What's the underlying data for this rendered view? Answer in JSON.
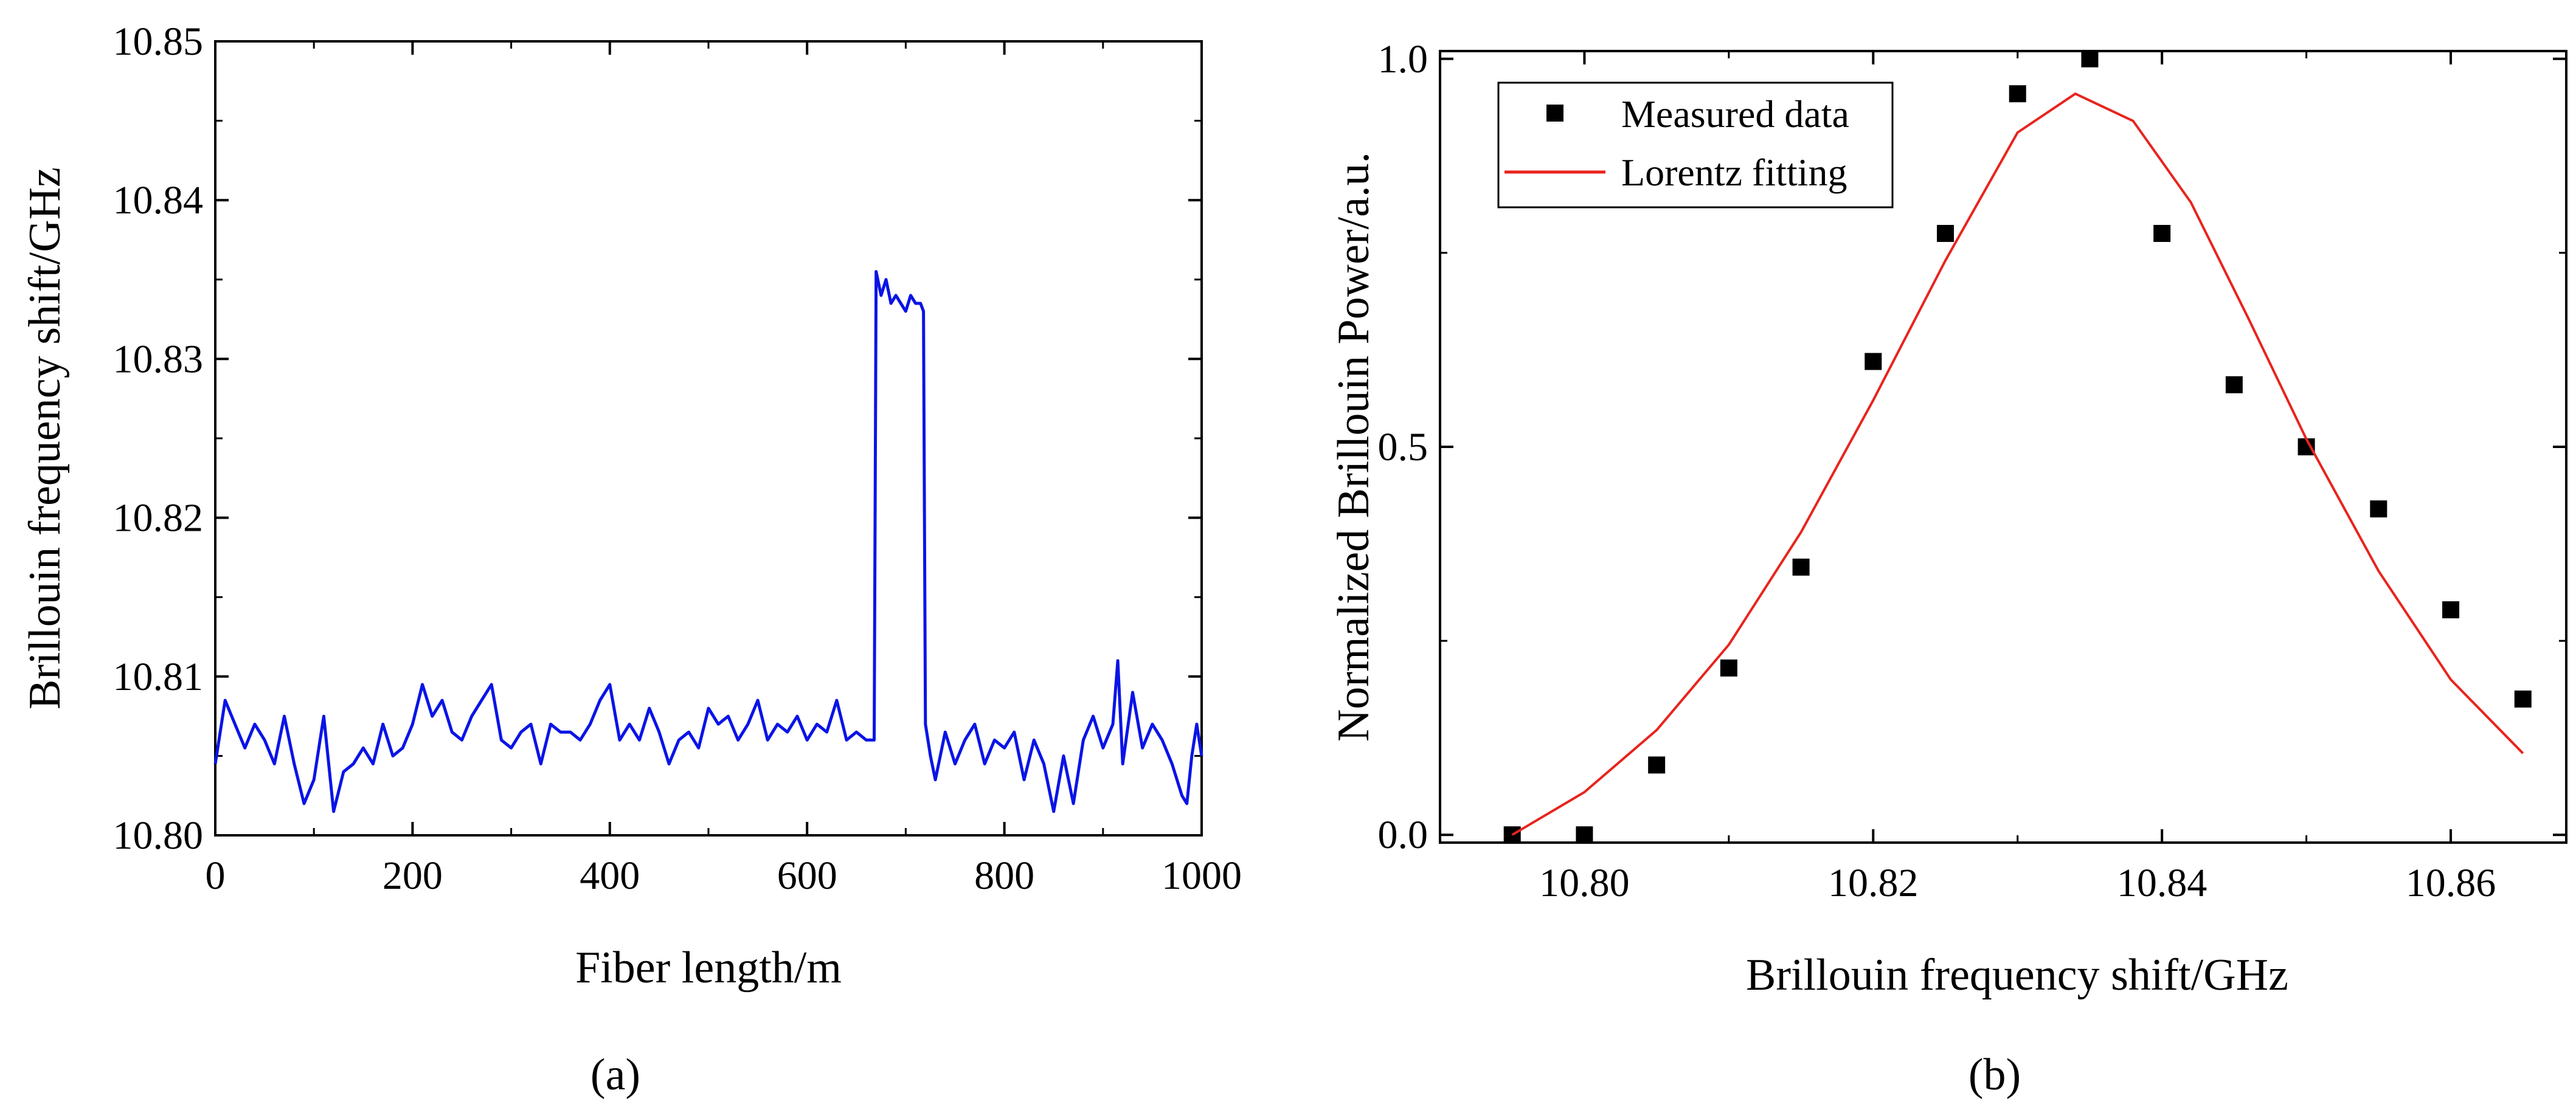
{
  "chart_data": [
    {
      "type": "line",
      "panel_label": "(a)",
      "title": "",
      "xlabel": "Fiber length/m",
      "ylabel": "Brillouin frequency shift/GHz",
      "xlim": [
        0,
        1000
      ],
      "ylim": [
        10.8,
        10.85
      ],
      "x_ticks": [
        0,
        200,
        400,
        600,
        800,
        1000
      ],
      "x_tick_labels": [
        "0",
        "200",
        "400",
        "600",
        "800",
        "1000"
      ],
      "y_ticks": [
        10.8,
        10.81,
        10.82,
        10.83,
        10.84,
        10.85
      ],
      "y_tick_labels": [
        "10.80",
        "10.81",
        "10.82",
        "10.83",
        "10.84",
        "10.85"
      ],
      "grid": false,
      "series": [
        {
          "name": "Brillouin frequency shift",
          "color": "#0a14e6",
          "x": [
            0,
            10,
            20,
            30,
            40,
            50,
            60,
            70,
            80,
            90,
            100,
            110,
            120,
            130,
            140,
            150,
            160,
            170,
            180,
            190,
            200,
            210,
            220,
            230,
            240,
            250,
            260,
            270,
            280,
            290,
            300,
            310,
            320,
            330,
            340,
            350,
            360,
            370,
            380,
            390,
            400,
            410,
            420,
            430,
            440,
            450,
            460,
            470,
            480,
            490,
            500,
            510,
            520,
            530,
            540,
            550,
            560,
            570,
            580,
            590,
            600,
            610,
            620,
            630,
            640,
            650,
            660,
            668,
            670,
            675,
            680,
            685,
            690,
            695,
            700,
            705,
            710,
            715,
            718,
            720,
            725,
            730,
            740,
            750,
            760,
            770,
            780,
            790,
            800,
            810,
            820,
            830,
            840,
            850,
            860,
            870,
            880,
            890,
            900,
            910,
            915,
            920,
            930,
            940,
            950,
            960,
            970,
            980,
            985,
            990,
            995,
            1000
          ],
          "y": [
            10.8045,
            10.8085,
            10.807,
            10.8055,
            10.807,
            10.806,
            10.8045,
            10.8075,
            10.8045,
            10.802,
            10.8035,
            10.8075,
            10.8015,
            10.804,
            10.8045,
            10.8055,
            10.8045,
            10.807,
            10.805,
            10.8055,
            10.807,
            10.8095,
            10.8075,
            10.8085,
            10.8065,
            10.806,
            10.8075,
            10.8085,
            10.8095,
            10.806,
            10.8055,
            10.8065,
            10.807,
            10.8045,
            10.807,
            10.8065,
            10.8065,
            10.806,
            10.807,
            10.8085,
            10.8095,
            10.806,
            10.807,
            10.806,
            10.808,
            10.8065,
            10.8045,
            10.806,
            10.8065,
            10.8055,
            10.808,
            10.807,
            10.8075,
            10.806,
            10.807,
            10.8085,
            10.806,
            10.807,
            10.8065,
            10.8075,
            10.806,
            10.807,
            10.8065,
            10.8085,
            10.806,
            10.8065,
            10.806,
            10.806,
            10.8355,
            10.834,
            10.835,
            10.8335,
            10.834,
            10.8335,
            10.833,
            10.834,
            10.8335,
            10.8335,
            10.833,
            10.807,
            10.805,
            10.8035,
            10.8065,
            10.8045,
            10.806,
            10.807,
            10.8045,
            10.806,
            10.8055,
            10.8065,
            10.8035,
            10.806,
            10.8045,
            10.8015,
            10.805,
            10.802,
            10.806,
            10.8075,
            10.8055,
            10.807,
            10.811,
            10.8045,
            10.809,
            10.8055,
            10.807,
            10.806,
            10.8045,
            10.8025,
            10.802,
            10.805,
            10.807,
            10.805
          ]
        }
      ]
    },
    {
      "type": "scatter",
      "panel_label": "(b)",
      "title": "",
      "xlabel": "Brillouin frequency shift/GHz",
      "ylabel": "Normalized Brillouin Power/a.u.",
      "xlim": [
        10.79,
        10.868
      ],
      "ylim": [
        -0.01,
        1.01
      ],
      "x_ticks": [
        10.8,
        10.82,
        10.84,
        10.86
      ],
      "x_tick_labels": [
        "10.80",
        "10.82",
        "10.84",
        "10.86"
      ],
      "y_ticks": [
        0.0,
        0.5,
        1.0
      ],
      "y_tick_labels": [
        "0.0",
        "0.5",
        "1.0"
      ],
      "grid": false,
      "legend_position": "top-left",
      "series": [
        {
          "name": "Measured data",
          "marker": "square",
          "color": "#000000",
          "x": [
            10.795,
            10.8,
            10.805,
            10.81,
            10.815,
            10.82,
            10.825,
            10.83,
            10.835,
            10.84,
            10.845,
            10.85,
            10.855,
            10.86,
            10.865
          ],
          "y": [
            0.0,
            0.0,
            0.09,
            0.215,
            0.345,
            0.61,
            0.775,
            0.955,
            1.0,
            0.775,
            0.58,
            0.5,
            0.42,
            0.29,
            0.175
          ]
        },
        {
          "name": "Lorentz fitting",
          "marker": "line",
          "color": "#e8241d",
          "x": [
            10.795,
            10.8,
            10.805,
            10.81,
            10.815,
            10.82,
            10.825,
            10.83,
            10.834,
            10.838,
            10.842,
            10.846,
            10.85,
            10.855,
            10.86,
            10.865
          ],
          "y": [
            0.0,
            0.055,
            0.135,
            0.245,
            0.39,
            0.56,
            0.74,
            0.905,
            0.955,
            0.92,
            0.815,
            0.665,
            0.51,
            0.34,
            0.2,
            0.105
          ]
        }
      ]
    }
  ]
}
